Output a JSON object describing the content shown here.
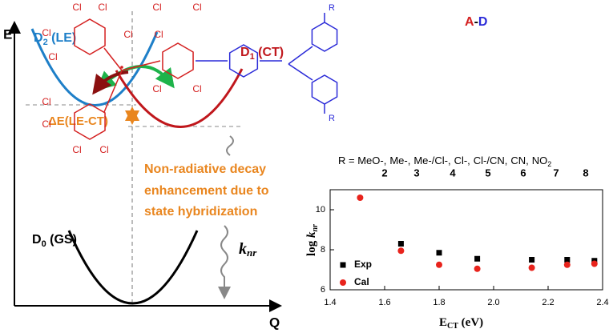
{
  "diagram": {
    "e_axis": "E",
    "q_axis": "Q",
    "d2": {
      "main": "D",
      "sub": "2",
      "rest": " (LE)"
    },
    "d1": {
      "main": "D",
      "sub": "1",
      "rest": " (CT)"
    },
    "d0": {
      "main": "D",
      "sub": "0",
      "rest": " (GS)"
    },
    "delta_e": "ΔE(LE-CT)",
    "note_lines": [
      "Non-radiative decay",
      "enhancement due to",
      "state hybridization"
    ],
    "knr": {
      "main": "k",
      "sub": "nr"
    }
  },
  "molecule": {
    "label": {
      "a": "A",
      "dash": "-",
      "d": "D"
    },
    "cl_labels": [
      "Cl",
      "Cl",
      "Cl",
      "Cl",
      "Cl",
      "Cl",
      "Cl",
      "Cl",
      "Cl",
      "Cl",
      "Cl",
      "Cl",
      "Cl",
      "Cl"
    ],
    "r_labels": [
      "R",
      "R"
    ],
    "r_list": {
      "prefix": "R = ",
      "items": [
        "MeO-,",
        "Me-,",
        "Me-/Cl-,",
        "Cl-,",
        "Cl-/CN,",
        "CN,",
        "NO"
      ],
      "no2_sub": "2"
    },
    "numbers": [
      "2",
      "3",
      "4",
      "5",
      "6",
      "7",
      "8"
    ]
  },
  "chart_data": {
    "type": "scatter",
    "x_label": {
      "main": "E",
      "sub": "CT",
      "rest": " (eV)"
    },
    "y_label": {
      "main": "log ",
      "italic": "k",
      "sub": "nr"
    },
    "x": [
      1.51,
      1.66,
      1.8,
      1.94,
      2.14,
      2.27,
      2.37
    ],
    "series": [
      {
        "name": "Exp",
        "color": "#000000",
        "marker": "square",
        "values": [
          null,
          8.3,
          7.85,
          7.55,
          7.5,
          7.5,
          7.45
        ]
      },
      {
        "name": "Cal",
        "color": "#e8231c",
        "marker": "circle",
        "values": [
          10.6,
          7.95,
          7.25,
          7.05,
          7.1,
          7.25,
          7.3
        ]
      }
    ],
    "xlim": [
      1.4,
      2.4
    ],
    "xticks": [
      1.4,
      1.6,
      1.8,
      {
        "value": 2,
        "label": "2.0"
      },
      2.2,
      2.4
    ],
    "ylim": [
      6,
      11
    ],
    "yticks": [
      6,
      8,
      10
    ],
    "legend": "lower-left"
  }
}
